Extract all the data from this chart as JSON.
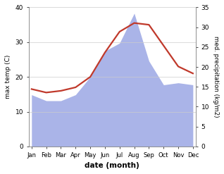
{
  "months": [
    "Jan",
    "Feb",
    "Mar",
    "Apr",
    "May",
    "Jun",
    "Jul",
    "Aug",
    "Sep",
    "Oct",
    "Nov",
    "Dec"
  ],
  "x": [
    0,
    1,
    2,
    3,
    4,
    5,
    6,
    7,
    8,
    9,
    10,
    11
  ],
  "temp": [
    16.5,
    15.5,
    16.0,
    17.0,
    20.0,
    27.0,
    33.0,
    35.5,
    35.0,
    29.0,
    23.0,
    21.0
  ],
  "precip_kg": [
    13.0,
    11.5,
    11.5,
    13.0,
    17.5,
    24.0,
    26.0,
    33.5,
    21.5,
    15.5,
    16.0,
    15.5
  ],
  "temp_ylim": [
    0,
    40
  ],
  "precip_ylim": [
    0,
    35
  ],
  "temp_color": "#c0392b",
  "precip_fill_color": "#aab4e8",
  "precip_fill_alpha": 1.0,
  "ylabel_left": "max temp (C)",
  "ylabel_right": "med. precipitation (kg/m2)",
  "xlabel": "date (month)",
  "fig_width": 3.18,
  "fig_height": 2.47,
  "dpi": 100
}
